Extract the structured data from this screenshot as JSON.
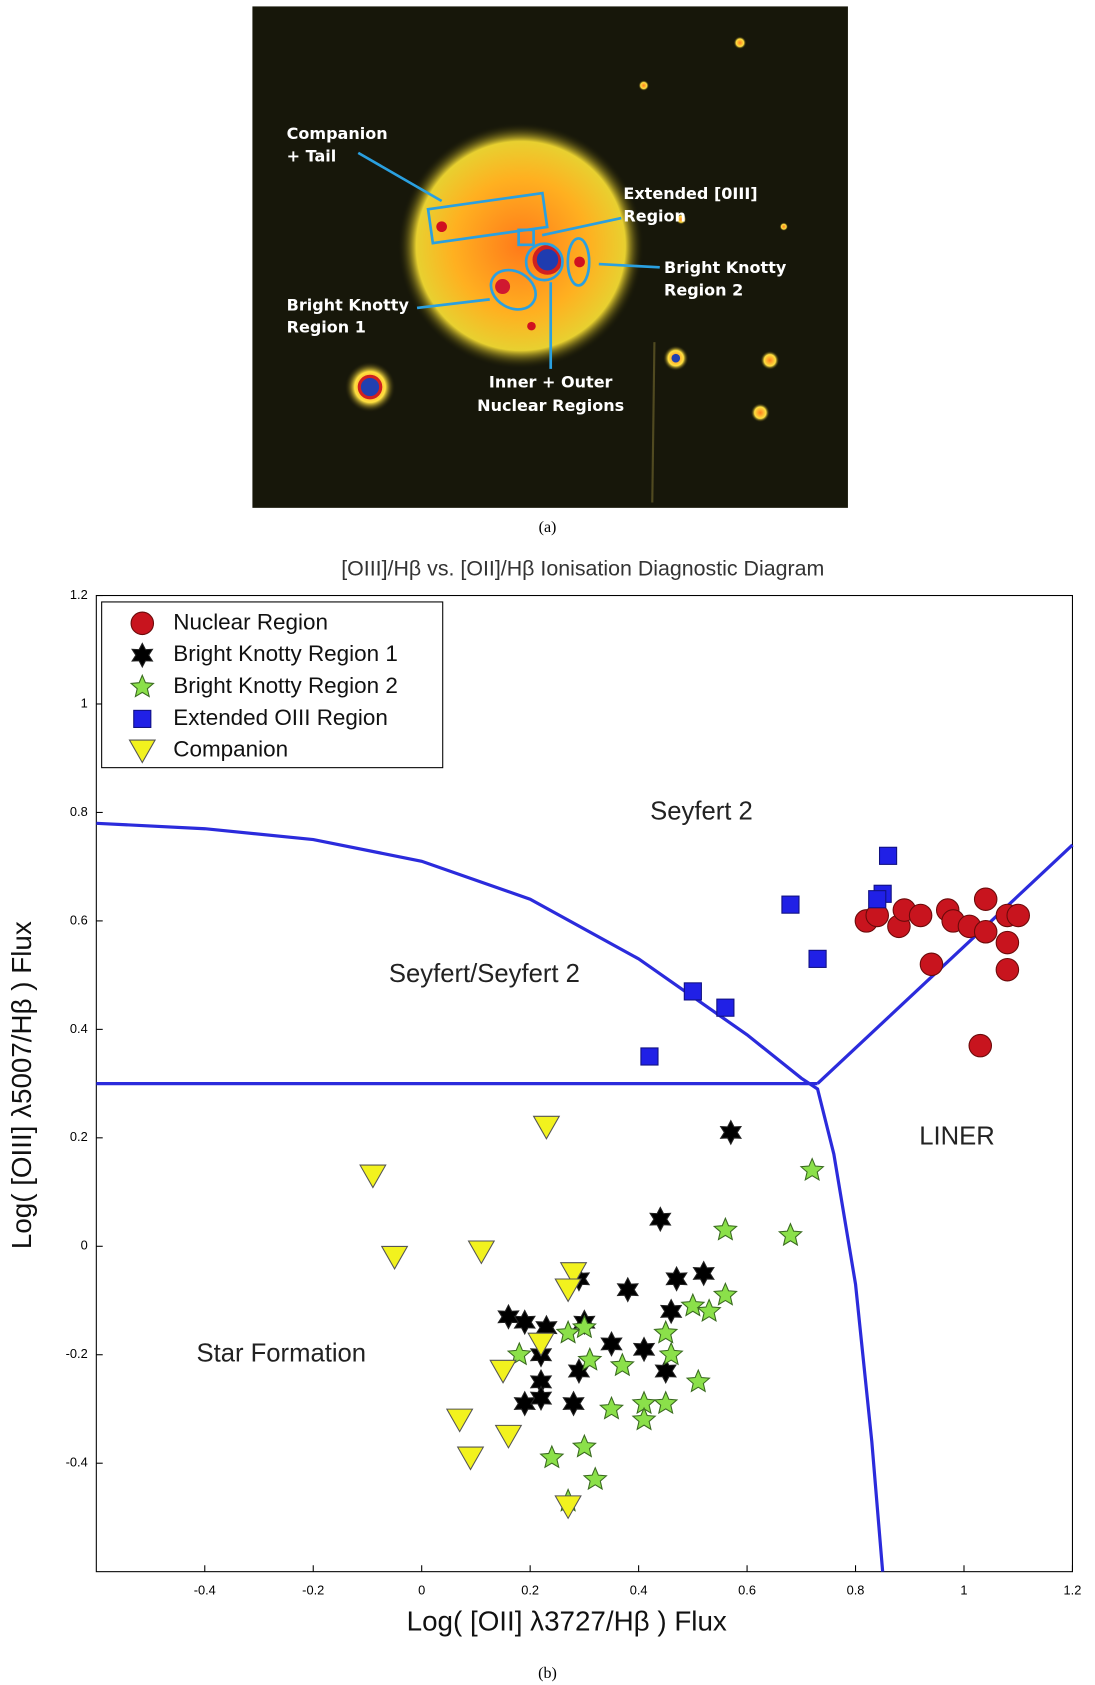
{
  "figure_a": {
    "labels": [
      "Companion",
      "+ Tail",
      "Extended [0III]",
      "Region",
      "Bright Knotty",
      "Region 2",
      "Bright Knotty",
      "Region 1",
      "Inner + Outer",
      "Nuclear Regions"
    ],
    "caption": "(a)"
  },
  "chart_data": {
    "type": "scatter",
    "title": "[OIII]/Hβ vs. [OII]/Hβ Ionisation Diagnostic Diagram",
    "x_label": "Log( [OII] λ3727/Hβ ) Flux",
    "y_label": "Log( [OIII] λ5007/Hβ ) Flux",
    "xlim": [
      -0.6,
      1.2
    ],
    "ylim": [
      -0.6,
      1.2
    ],
    "xticks": [
      -0.4,
      -0.2,
      0,
      0.2,
      0.4,
      0.6,
      0.8,
      1,
      1.2
    ],
    "yticks": [
      -0.4,
      -0.2,
      0,
      0.2,
      0.4,
      0.6,
      0.8,
      1,
      1.2
    ],
    "legend": "upper left",
    "annotations": [
      "Seyfert 2",
      "Seyfert/Seyfert 2",
      "LINER",
      "Star Formation"
    ],
    "boundaries": [
      {
        "color": "#2b2bdc",
        "x": [
          -0.6,
          -0.4,
          -0.2,
          0,
          0.2,
          0.4,
          0.5,
          0.6,
          0.7,
          0.73,
          0.76,
          0.8,
          0.83,
          0.85
        ],
        "y": [
          0.78,
          0.77,
          0.75,
          0.71,
          0.64,
          0.53,
          0.46,
          0.39,
          0.31,
          0.29,
          0.17,
          -0.07,
          -0.36,
          -0.6
        ]
      },
      {
        "color": "#2b2bdc",
        "x": [
          -0.6,
          0.73
        ],
        "y": [
          0.3,
          0.3
        ]
      },
      {
        "color": "#2b2bdc",
        "x": [
          0.73,
          1.2
        ],
        "y": [
          0.3,
          0.74
        ]
      }
    ],
    "series": [
      {
        "name": "Nuclear Region",
        "color": "#c8141e",
        "marker": "circle",
        "x": [
          0.82,
          0.84,
          0.88,
          0.89,
          0.92,
          0.97,
          0.98,
          1.01,
          1.04,
          1.04,
          1.08,
          1.1,
          0.94,
          1.08,
          1.08,
          1.03
        ],
        "y": [
          0.6,
          0.61,
          0.59,
          0.62,
          0.61,
          0.62,
          0.6,
          0.59,
          0.64,
          0.58,
          0.61,
          0.61,
          0.52,
          0.56,
          0.51,
          0.37
        ]
      },
      {
        "name": "Bright Knotty Region 1",
        "color": "#000000",
        "marker": "hexagram",
        "x": [
          0.57,
          0.44,
          0.52,
          0.47,
          0.38,
          0.29,
          0.46,
          0.16,
          0.19,
          0.23,
          0.3,
          0.35,
          0.41,
          0.22,
          0.29,
          0.45,
          0.22,
          0.19,
          0.22,
          0.28
        ],
        "y": [
          0.21,
          0.05,
          -0.05,
          -0.06,
          -0.08,
          -0.06,
          -0.12,
          -0.13,
          -0.14,
          -0.15,
          -0.14,
          -0.18,
          -0.19,
          -0.2,
          -0.23,
          -0.23,
          -0.25,
          -0.29,
          -0.28,
          -0.29
        ]
      },
      {
        "name": "Bright Knotty Region 2",
        "color": "#8be04a",
        "marker": "star",
        "x": [
          0.72,
          0.56,
          0.68,
          0.5,
          0.56,
          0.53,
          0.45,
          0.46,
          0.27,
          0.3,
          0.18,
          0.31,
          0.37,
          0.51,
          0.35,
          0.41,
          0.45,
          0.41,
          0.3,
          0.24,
          0.32,
          0.27
        ],
        "y": [
          0.14,
          0.03,
          0.02,
          -0.11,
          -0.09,
          -0.12,
          -0.16,
          -0.2,
          -0.16,
          -0.15,
          -0.2,
          -0.21,
          -0.22,
          -0.25,
          -0.3,
          -0.29,
          -0.29,
          -0.32,
          -0.37,
          -0.39,
          -0.43,
          -0.47
        ]
      },
      {
        "name": "Extended OIII Region",
        "color": "#2020e6",
        "marker": "square",
        "x": [
          0.86,
          0.85,
          0.84,
          0.68,
          0.73,
          0.5,
          0.56,
          0.42
        ],
        "y": [
          0.72,
          0.65,
          0.64,
          0.63,
          0.53,
          0.47,
          0.44,
          0.35
        ]
      },
      {
        "name": "Companion",
        "color": "#f2f21e",
        "marker": "triangle-down",
        "x": [
          0.23,
          -0.09,
          -0.05,
          0.11,
          0.28,
          0.27,
          0.22,
          0.15,
          0.07,
          0.09,
          0.16,
          0.27
        ],
        "y": [
          0.22,
          0.13,
          -0.02,
          -0.01,
          -0.05,
          -0.08,
          -0.18,
          -0.23,
          -0.32,
          -0.39,
          -0.35,
          -0.48
        ]
      }
    ]
  },
  "caption_b": "(b)"
}
